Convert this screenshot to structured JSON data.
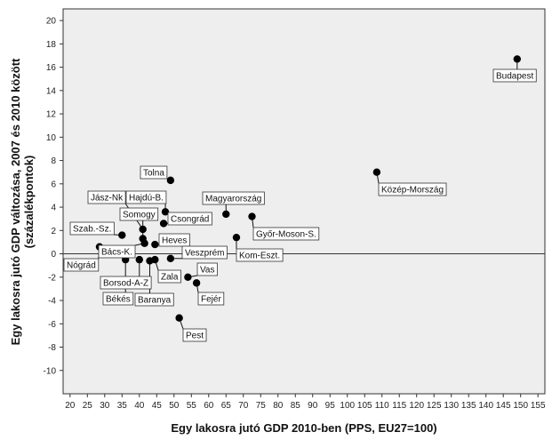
{
  "chart_data": {
    "type": "scatter",
    "xlabel": "Egy lakosra jutó GDP 2010-ben (PPS, EU27=100)",
    "ylabel": [
      "Egy lakosra jutó GDP változása, 2007 és 2010 között",
      "(százalékpontok)"
    ],
    "xlim": [
      18,
      157
    ],
    "ylim": [
      -12,
      21
    ],
    "xticks": [
      20,
      25,
      30,
      35,
      40,
      45,
      50,
      55,
      60,
      65,
      70,
      75,
      80,
      85,
      90,
      95,
      100,
      105,
      110,
      115,
      120,
      125,
      130,
      135,
      140,
      145,
      150,
      155
    ],
    "yticks": [
      -10,
      -8,
      -6,
      -4,
      -2,
      0,
      2,
      4,
      6,
      8,
      10,
      12,
      14,
      16,
      18,
      20
    ],
    "reference_line_y": 0,
    "grid": false,
    "background": "#eeeeee",
    "points": [
      {
        "label": "Budapest",
        "x": 149,
        "y": 16.7
      },
      {
        "label": "Közép-Mország",
        "x": 108.5,
        "y": 7.0
      },
      {
        "label": "Tolna",
        "x": 49,
        "y": 6.3
      },
      {
        "label": "Jász-Nk",
        "x": 41,
        "y": 2.1
      },
      {
        "label": "Hajdú-B.",
        "x": 47.5,
        "y": 3.6
      },
      {
        "label": "Magyarország",
        "x": 65,
        "y": 3.4
      },
      {
        "label": "Somogy",
        "x": 41,
        "y": 1.3
      },
      {
        "label": "Csongrád",
        "x": 47,
        "y": 2.6
      },
      {
        "label": "Győr-Moson-S.",
        "x": 72.5,
        "y": 3.2
      },
      {
        "label": "Szab.-Sz.",
        "x": 35,
        "y": 1.6
      },
      {
        "label": "Heves",
        "x": 44.5,
        "y": 0.8
      },
      {
        "label": "Bács-K.",
        "x": 41.5,
        "y": 0.9
      },
      {
        "label": "Kom-Eszt.",
        "x": 68,
        "y": 1.4
      },
      {
        "label": "Nógrád",
        "x": 28.5,
        "y": 0.6
      },
      {
        "label": "Veszprém",
        "x": 49,
        "y": -0.4
      },
      {
        "label": "Borsod-A-Z",
        "x": 40,
        "y": -0.5
      },
      {
        "label": "Vas",
        "x": 54,
        "y": -2.0
      },
      {
        "label": "Zala",
        "x": 44.5,
        "y": -0.5
      },
      {
        "label": "Békés",
        "x": 36,
        "y": -0.5
      },
      {
        "label": "Baranya",
        "x": 43,
        "y": -0.6
      },
      {
        "label": "Fejér",
        "x": 56.5,
        "y": -2.5
      },
      {
        "label": "Pest",
        "x": 51.5,
        "y": -5.5
      }
    ]
  }
}
